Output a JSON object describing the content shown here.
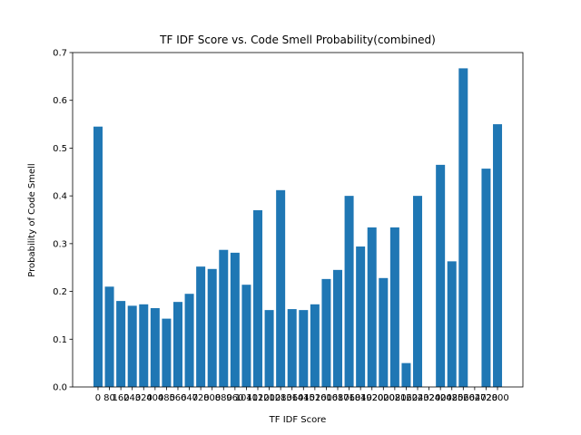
{
  "chart_data": {
    "type": "bar",
    "title": "TF IDF Score vs. Code Smell Probability(combined)",
    "x_label": "TF IDF Score",
    "y_label": "Probability of Code Smell",
    "x": [
      0,
      80,
      160,
      240,
      320,
      400,
      480,
      560,
      640,
      720,
      800,
      880,
      960,
      1040,
      1120,
      1200,
      1280,
      1360,
      1440,
      1520,
      1600,
      1680,
      1760,
      1840,
      1920,
      2000,
      2080,
      2160,
      2240,
      2320,
      2400,
      2480,
      2560,
      2640,
      2720,
      2800
    ],
    "values": [
      0.545,
      0.21,
      0.18,
      0.17,
      0.173,
      0.165,
      0.143,
      0.178,
      0.195,
      0.252,
      0.247,
      0.287,
      0.281,
      0.214,
      0.37,
      0.161,
      0.412,
      0.163,
      0.161,
      0.173,
      0.226,
      0.245,
      0.4,
      0.294,
      0.334,
      0.228,
      0.334,
      0.05,
      0.4,
      0,
      0.465,
      0.263,
      0.667,
      0,
      0.457,
      0.55
    ],
    "color": "#1f77b4",
    "xlim": [
      -178,
      2978
    ],
    "xticks": [
      0,
      80,
      160,
      240,
      320,
      400,
      480,
      560,
      640,
      720,
      800,
      880,
      960,
      1040,
      1120,
      1200,
      1280,
      1360,
      1440,
      1520,
      1600,
      1680,
      1760,
      1840,
      1920,
      2000,
      2080,
      2160,
      2240,
      2320,
      2400,
      2480,
      2560,
      2640,
      2720,
      2800
    ],
    "ylim": [
      0,
      0.7
    ],
    "yticks": [
      {
        "value": 0,
        "label": "0.0"
      },
      {
        "value": 0.1,
        "label": "0.1"
      },
      {
        "value": 0.2,
        "label": "0.2"
      },
      {
        "value": 0.3,
        "label": "0.3"
      },
      {
        "value": 0.4,
        "label": "0.4"
      },
      {
        "value": 0.5,
        "label": "0.5"
      },
      {
        "value": 0.6,
        "label": "0.6"
      },
      {
        "value": 0.7,
        "label": "0.7"
      }
    ]
  }
}
